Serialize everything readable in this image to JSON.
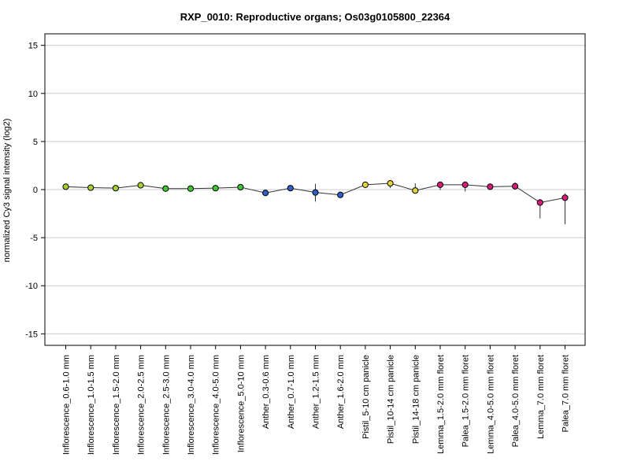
{
  "chart_data": {
    "type": "line",
    "title": "RXP_0010: Reproductive organs; Os03g0105800_22364",
    "xlabel": "",
    "ylabel": "normalized Cy3 signal intensity (log2)",
    "ylim": [
      -16.2,
      16.2
    ],
    "yticks": [
      15,
      10,
      5,
      0,
      -5,
      -10,
      -15
    ],
    "grid": true,
    "grid_lines_at": [
      15,
      10,
      5,
      0,
      -5,
      -10,
      -15
    ],
    "categories": [
      "Inflorescence_0.6-1.0 mm",
      "Inflorescence_1.0-1.5 mm",
      "Inflorescence_1.5-2.0 mm",
      "Inflorescence_2.0-2.5 mm",
      "Inflorescence_2.5-3.0 mm",
      "Inflorescence_3.0-4.0 mm",
      "Inflorescence_4.0-5.0 mm",
      "Inflorescence_5.0-10 mm",
      "Anther_0.3-0.6 mm",
      "Anther_0.7-1.0 mm",
      "Anther_1.2-1.5 mm",
      "Anther_1.6-2.0 mm",
      "Pistil_5-10 cm panicle",
      "Pistil_10-14 cm panicle",
      "Pistil_14-18 cm panicle",
      "Lemma_1.5-2.0 mm floret",
      "Palea_1.5-2.0 mm floret",
      "Lemma_4.0-5.0 mm floret",
      "Palea_4.0-5.0 mm floret",
      "Lemma_7.0 mm floret",
      "Palea_7.0 mm floret"
    ],
    "values": [
      0.3,
      0.2,
      0.15,
      0.45,
      0.1,
      0.1,
      0.15,
      0.25,
      -0.35,
      0.15,
      -0.3,
      -0.55,
      0.5,
      0.65,
      -0.1,
      0.5,
      0.5,
      0.3,
      0.35,
      -1.35,
      -0.85
    ],
    "error_low": [
      0.15,
      0.1,
      0.1,
      0.35,
      0.05,
      0.05,
      0.05,
      0.1,
      -0.45,
      0.05,
      -1.25,
      -0.65,
      0.2,
      0.15,
      -0.35,
      -0.05,
      -0.2,
      0.1,
      0.0,
      -3.0,
      -3.6
    ],
    "error_high": [
      0.45,
      0.3,
      0.25,
      0.55,
      0.15,
      0.15,
      0.25,
      0.4,
      -0.25,
      0.25,
      0.6,
      -0.45,
      0.8,
      0.95,
      0.65,
      0.8,
      0.8,
      0.5,
      0.75,
      -1.0,
      -0.4
    ],
    "point_colors": [
      "#a6d130",
      "#a6d130",
      "#a6d130",
      "#a6d130",
      "#3ec733",
      "#3ec733",
      "#3ec733",
      "#3ec733",
      "#2d5fc8",
      "#2d5fc8",
      "#2d5fc8",
      "#2d5fc8",
      "#e6d23a",
      "#e6d23a",
      "#e6d23a",
      "#d81a78",
      "#d81a78",
      "#d81a78",
      "#d81a78",
      "#d81a78",
      "#d81a78"
    ],
    "line_color": "#333333",
    "grid_color": "#cccccc"
  }
}
